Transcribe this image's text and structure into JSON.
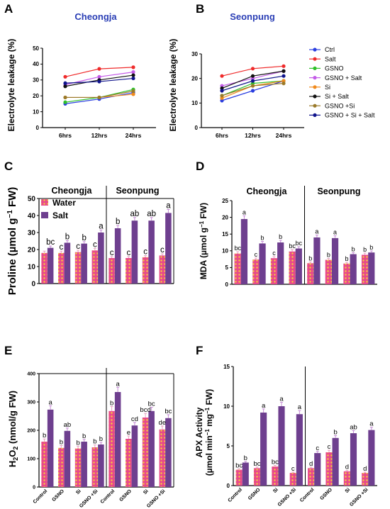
{
  "colors": {
    "line_series": [
      "#2a3ee0",
      "#ef2b2b",
      "#2fc02a",
      "#c45ce8",
      "#f08a1c",
      "#111111",
      "#9a7a2a",
      "#10148c"
    ],
    "water": "#e84a8a",
    "water_dots": "#f4d23a",
    "salt": "#6e3f8f",
    "salt_err": "#c58ad6"
  },
  "chart_data": [
    {
      "panel": "A",
      "type": "line",
      "title": "Cheongja",
      "xlabel": "",
      "ylabel": "Electrolyte leakage (%)",
      "categories": [
        "6hrs",
        "12hrs",
        "24hrs"
      ],
      "ylim": [
        0,
        50
      ],
      "yticks": [
        0,
        10,
        20,
        30,
        40,
        50
      ],
      "series": [
        {
          "name": "Ctrl",
          "values": [
            15,
            18,
            22
          ]
        },
        {
          "name": "Salt",
          "values": [
            32,
            37,
            38
          ]
        },
        {
          "name": "GSNO",
          "values": [
            16,
            19,
            24
          ]
        },
        {
          "name": "GSNO + Salt",
          "values": [
            27,
            32,
            35
          ]
        },
        {
          "name": "Si",
          "values": [
            19,
            19,
            21
          ]
        },
        {
          "name": "Si + Salt",
          "values": [
            26,
            30,
            33
          ]
        },
        {
          "name": "GSNO +Si",
          "values": [
            19,
            19,
            23
          ]
        },
        {
          "name": "GSNO + Si + Salt",
          "values": [
            28,
            29,
            31
          ]
        }
      ]
    },
    {
      "panel": "B",
      "type": "line",
      "title": "Seonpung",
      "xlabel": "",
      "ylabel": "Electrolyte leakage (%)",
      "categories": [
        "6hrs",
        "12hrs",
        "24hrs"
      ],
      "ylim": [
        0,
        30
      ],
      "yticks": [
        0,
        10,
        20,
        30
      ],
      "series": [
        {
          "name": "Ctrl",
          "values": [
            11,
            15,
            19
          ]
        },
        {
          "name": "Salt",
          "values": [
            21,
            24,
            25
          ]
        },
        {
          "name": "GSNO",
          "values": [
            13,
            18,
            19
          ]
        },
        {
          "name": "GSNO + Salt",
          "values": [
            17,
            20,
            23
          ]
        },
        {
          "name": "Si",
          "values": [
            12,
            17,
            19
          ]
        },
        {
          "name": "Si + Salt",
          "values": [
            16,
            21,
            23
          ]
        },
        {
          "name": "GSNO +Si",
          "values": [
            13,
            17,
            18
          ]
        },
        {
          "name": "GSNO + Si + Salt",
          "values": [
            15,
            19,
            21
          ]
        }
      ]
    },
    {
      "panel": "C",
      "type": "bar",
      "ylabel_main": "Proline (µmol g",
      "ylabel_sup": "−1",
      "ylabel_end": " FW)",
      "groups": [
        "Cheongja",
        "Seonpung"
      ],
      "legend": [
        "Water",
        "Salt"
      ],
      "ylim": [
        0,
        50
      ],
      "yticks": [
        0,
        10,
        20,
        30,
        40,
        50
      ],
      "bars": [
        {
          "water": 18,
          "salt": 21,
          "water_letter": "",
          "salt_letter": "bc"
        },
        {
          "water": 18,
          "salt": 24,
          "water_letter": "c",
          "salt_letter": "b"
        },
        {
          "water": 18.5,
          "salt": 23.5,
          "water_letter": "c",
          "salt_letter": "b"
        },
        {
          "water": 19.5,
          "salt": 30,
          "water_letter": "c",
          "salt_letter": "a"
        },
        {
          "water": 15,
          "salt": 32.5,
          "water_letter": "c",
          "salt_letter": "b"
        },
        {
          "water": 15,
          "salt": 37,
          "water_letter": "c",
          "salt_letter": "ab"
        },
        {
          "water": 15.5,
          "salt": 37,
          "water_letter": "c",
          "salt_letter": "ab"
        },
        {
          "water": 16.5,
          "salt": 41.5,
          "water_letter": "c",
          "salt_letter": "a"
        }
      ]
    },
    {
      "panel": "D",
      "type": "bar",
      "ylabel_main": "MDA (µmol g",
      "ylabel_sup": "−1",
      "ylabel_end": " FW)",
      "groups": [
        "Cheongja",
        "Seonpung"
      ],
      "ylim": [
        0,
        25
      ],
      "yticks": [
        0,
        5,
        10,
        15,
        20,
        25
      ],
      "bars": [
        {
          "water": 9.2,
          "salt": 19.5,
          "water_letter": "bc",
          "salt_letter": "a"
        },
        {
          "water": 7.4,
          "salt": 12.2,
          "water_letter": "c",
          "salt_letter": "b"
        },
        {
          "water": 7.8,
          "salt": 12.5,
          "water_letter": "c",
          "salt_letter": "b"
        },
        {
          "water": 9.8,
          "salt": 10.7,
          "water_letter": "bc",
          "salt_letter": "bc"
        },
        {
          "water": 6.3,
          "salt": 14,
          "water_letter": "b",
          "salt_letter": "a"
        },
        {
          "water": 7.3,
          "salt": 13.8,
          "water_letter": "b",
          "salt_letter": "a"
        },
        {
          "water": 6.2,
          "salt": 9,
          "water_letter": "b",
          "salt_letter": "b"
        },
        {
          "water": 8.8,
          "salt": 9.5,
          "water_letter": "b",
          "salt_letter": "b"
        }
      ]
    },
    {
      "panel": "E",
      "type": "bar",
      "ylabel_a": "H",
      "ylabel_sub": "2",
      "ylabel_b": "O",
      "ylabel_sub2": "2",
      "ylabel_c": " (nmol/g FW)",
      "categories": [
        "Control",
        "GSNO",
        "Si",
        "GSNO +Si",
        "Control",
        "GSNO",
        "Si",
        "GSNO +Si"
      ],
      "ylim": [
        0,
        400
      ],
      "yticks": [
        0,
        100,
        200,
        300,
        400
      ],
      "bars": [
        {
          "water": 160,
          "salt": 273,
          "water_letter": "b",
          "salt_letter": "a"
        },
        {
          "water": 138,
          "salt": 198,
          "water_letter": "b",
          "salt_letter": "ab"
        },
        {
          "water": 136,
          "salt": 160,
          "water_letter": "b",
          "salt_letter": "b"
        },
        {
          "water": 140,
          "salt": 150,
          "water_letter": "b",
          "salt_letter": "b"
        },
        {
          "water": 268,
          "salt": 335,
          "water_letter": "b",
          "salt_letter": "a"
        },
        {
          "water": 170,
          "salt": 217,
          "water_letter": "e",
          "salt_letter": "cd"
        },
        {
          "water": 245,
          "salt": 268,
          "water_letter": "bcd",
          "salt_letter": "bc"
        },
        {
          "water": 203,
          "salt": 243,
          "water_letter": "de",
          "salt_letter": "bc"
        }
      ]
    },
    {
      "panel": "F",
      "type": "bar",
      "ylabel_line1": "APX Activity",
      "ylabel_line2_main": "(µmol min",
      "ylabel_line2_sup1": "−1",
      "ylabel_line2_mid": " mg",
      "ylabel_line2_sup2": "−1",
      "ylabel_line2_end": " FW)",
      "categories": [
        "Control",
        "GSNO",
        "Si",
        "GSNO +Si",
        "Control",
        "GSNO",
        "Si",
        "GSNO +Si"
      ],
      "ylim": [
        0,
        15
      ],
      "yticks": [
        0,
        5,
        10,
        15
      ],
      "bars": [
        {
          "water": 2,
          "salt": 2.9,
          "water_letter": "bc",
          "salt_letter": "b"
        },
        {
          "water": 2.2,
          "salt": 9.2,
          "water_letter": "bc",
          "salt_letter": "a"
        },
        {
          "water": 2.4,
          "salt": 10,
          "water_letter": "bc",
          "salt_letter": "a"
        },
        {
          "water": 1.6,
          "salt": 9,
          "water_letter": "c",
          "salt_letter": "a"
        },
        {
          "water": 2.2,
          "salt": 4.1,
          "water_letter": "d",
          "salt_letter": "c"
        },
        {
          "water": 4.2,
          "salt": 6,
          "water_letter": "c",
          "salt_letter": "b"
        },
        {
          "water": 1.8,
          "salt": 6.6,
          "water_letter": "d",
          "salt_letter": "ab"
        },
        {
          "water": 1.6,
          "salt": 7,
          "water_letter": "d",
          "salt_letter": "a"
        }
      ]
    }
  ]
}
